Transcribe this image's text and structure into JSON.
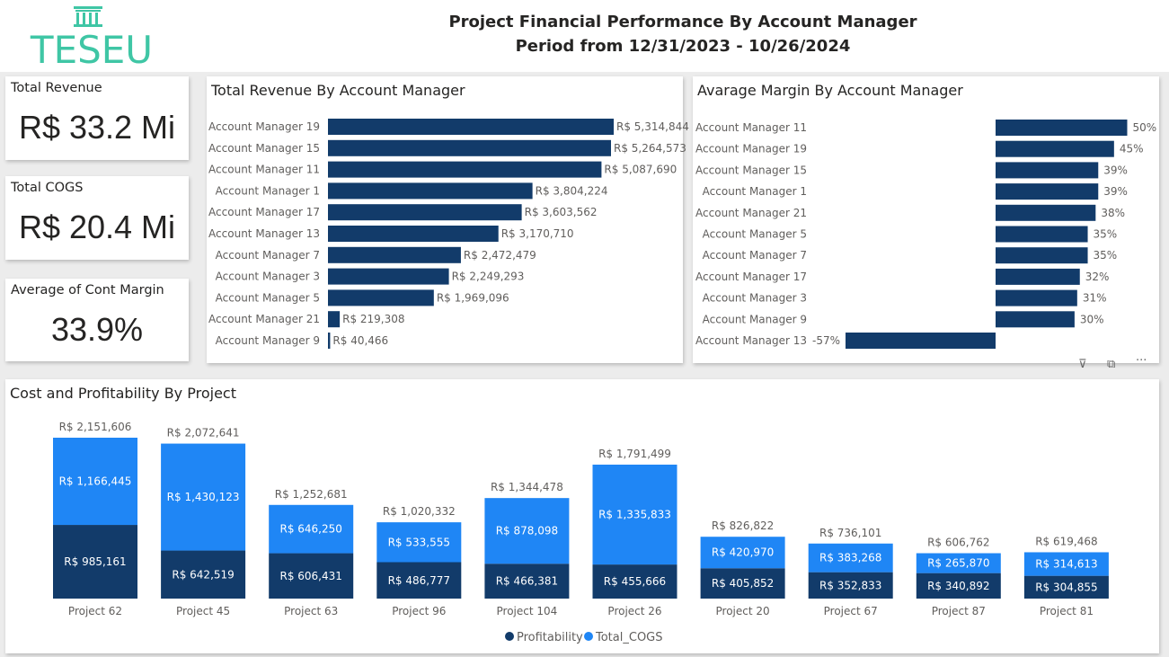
{
  "header": {
    "title_line1": "Project Financial Performance By Account Manager",
    "title_line2": "Period from 12/31/2023 - 10/26/2024",
    "logo_text": "TESEU"
  },
  "kpis": [
    {
      "label": "Total Revenue",
      "value": "R$ 33.2 Mi"
    },
    {
      "label": "Total COGS",
      "value": "R$ 20.4 Mi"
    },
    {
      "label": "Average of Cont Margin",
      "value": "33.9%"
    }
  ],
  "colors": {
    "dark_navy": "#123b6a",
    "light_blue": "#1f86f5",
    "bar_navy": "#123b6a"
  },
  "chart_data": [
    {
      "type": "bar",
      "orientation": "horizontal",
      "title": "Total Revenue By Account Manager",
      "categories": [
        "Account Manager 19",
        "Account Manager 15",
        "Account Manager 11",
        "Account Manager 1",
        "Account Manager 17",
        "Account Manager 13",
        "Account Manager 7",
        "Account Manager 3",
        "Account Manager 5",
        "Account Manager 21",
        "Account Manager 9"
      ],
      "values": [
        5314844,
        5264573,
        5087690,
        3804224,
        3603562,
        3170710,
        2472479,
        2249293,
        1969096,
        219308,
        40466
      ],
      "labels": [
        "R$ 5,314,844",
        "R$ 5,264,573",
        "R$ 5,087,690",
        "R$ 3,804,224",
        "R$ 3,603,562",
        "R$ 3,170,710",
        "R$ 2,472,479",
        "R$ 2,249,293",
        "R$ 1,969,096",
        "R$ 219,308",
        "R$ 40,466"
      ],
      "xlim": [
        0,
        5314844
      ]
    },
    {
      "type": "bar",
      "orientation": "horizontal",
      "title": "Avarage Margin By Account Manager",
      "categories": [
        "Account Manager 11",
        "Account Manager 19",
        "Account Manager 15",
        "Account Manager 1",
        "Account Manager 21",
        "Account Manager 5",
        "Account Manager 7",
        "Account Manager 17",
        "Account Manager 3",
        "Account Manager 9",
        "Account Manager 13"
      ],
      "values": [
        50,
        45,
        39,
        39,
        38,
        35,
        35,
        32,
        31,
        30,
        -57
      ],
      "labels": [
        "50%",
        "45%",
        "39%",
        "39%",
        "38%",
        "35%",
        "35%",
        "32%",
        "31%",
        "30%",
        "-57%"
      ],
      "xlim": [
        -57,
        50
      ]
    },
    {
      "type": "bar",
      "stacked": true,
      "title": "Cost and Profitability By Project",
      "categories": [
        "Project 62",
        "Project 45",
        "Project 63",
        "Project 96",
        "Project 104",
        "Project 26",
        "Project 20",
        "Project 67",
        "Project 87",
        "Project 81"
      ],
      "series": [
        {
          "name": "Profitability",
          "values": [
            985161,
            642519,
            606431,
            486777,
            466381,
            455666,
            405852,
            352833,
            340892,
            304855
          ],
          "labels": [
            "R$ 985,161",
            "R$ 642,519",
            "R$ 606,431",
            "R$ 486,777",
            "R$ 466,381",
            "R$ 455,666",
            "R$ 405,852",
            "R$ 352,833",
            "R$ 340,892",
            "R$ 304,855"
          ]
        },
        {
          "name": "Total_COGS",
          "values": [
            1166445,
            1430123,
            646250,
            533555,
            878098,
            1335833,
            420970,
            383268,
            265870,
            314613
          ],
          "labels": [
            "R$ 1,166,445",
            "R$ 1,430,123",
            "R$ 646,250",
            "R$ 533,555",
            "R$ 878,098",
            "R$ 1,335,833",
            "R$ 420,970",
            "R$ 383,268",
            "R$ 265,870",
            "R$ 314,613"
          ]
        }
      ],
      "totals": [
        "R$ 2,151,606",
        "R$ 2,072,641",
        "R$ 1,252,681",
        "R$ 1,020,332",
        "R$ 1,344,478",
        "R$ 1,791,499",
        "R$ 826,822",
        "R$ 736,101",
        "R$ 606,762",
        "R$ 619,468"
      ],
      "legend": "bottom-center"
    }
  ]
}
